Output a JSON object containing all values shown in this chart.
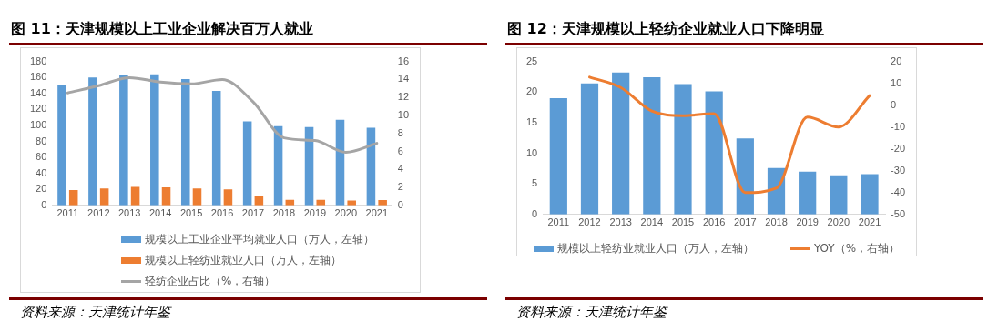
{
  "chart_data": [
    {
      "type": "bar",
      "title": "图 11：天津规模以上工业企业解决百万人就业",
      "categories": [
        "2011",
        "2012",
        "2013",
        "2014",
        "2015",
        "2016",
        "2017",
        "2018",
        "2019",
        "2020",
        "2021"
      ],
      "series": [
        {
          "name": "规模以上工业企业平均就业人口（万人，左轴）",
          "color": "#5b9bd5",
          "values": [
            150,
            160,
            163,
            164,
            158,
            143,
            105,
            99,
            98,
            107,
            97
          ]
        },
        {
          "name": "规模以上轻纺业就业人口（万人，左轴）",
          "color": "#ed7d31",
          "values": [
            19,
            21,
            23,
            22.5,
            21,
            20,
            12,
            7,
            7,
            6,
            6.5
          ]
        },
        {
          "name": "轻纺企业占比（%，右轴）",
          "color": "#a5a5a5",
          "type": "line",
          "axis": "y2",
          "values": [
            12.5,
            13.3,
            14.2,
            13.7,
            13.5,
            14.0,
            11.5,
            7.5,
            7.2,
            5.9,
            6.9
          ]
        }
      ],
      "ylim": [
        0,
        180
      ],
      "yticks": [
        0,
        20,
        40,
        60,
        80,
        100,
        120,
        140,
        160,
        180
      ],
      "y2lim": [
        0,
        16
      ],
      "y2ticks": [
        0,
        2,
        4,
        6,
        8,
        10,
        12,
        14,
        16
      ],
      "legend": "bottom",
      "annotations": [
        "资料来源：天津统计年鉴"
      ]
    },
    {
      "type": "bar",
      "title": "图 12：天津规模以上轻纺企业就业人口下降明显",
      "categories": [
        "2011",
        "2012",
        "2013",
        "2014",
        "2015",
        "2016",
        "2017",
        "2018",
        "2019",
        "2020",
        "2021"
      ],
      "series": [
        {
          "name": "规模以上轻纺业就业人口（万人，左轴）",
          "color": "#5b9bd5",
          "values": [
            19.0,
            21.4,
            23.2,
            22.4,
            21.3,
            20.1,
            12.4,
            7.6,
            7.0,
            6.4,
            6.6
          ]
        },
        {
          "name": "YOY（%，右轴）",
          "color": "#ed7d31",
          "type": "line",
          "axis": "y2",
          "values": [
            null,
            12.8,
            8.1,
            -2.7,
            -4.8,
            -3.9,
            -40,
            -38,
            -5.5,
            -10,
            4.4
          ]
        }
      ],
      "ylim": [
        0,
        25
      ],
      "yticks": [
        0,
        5,
        10,
        15,
        20,
        25
      ],
      "y2lim": [
        -50,
        20
      ],
      "y2ticks": [
        -50,
        -40,
        -30,
        -20,
        -10,
        0,
        10,
        20
      ],
      "legend": "bottom",
      "annotations": [
        "资料来源：天津统计年鉴"
      ]
    }
  ]
}
